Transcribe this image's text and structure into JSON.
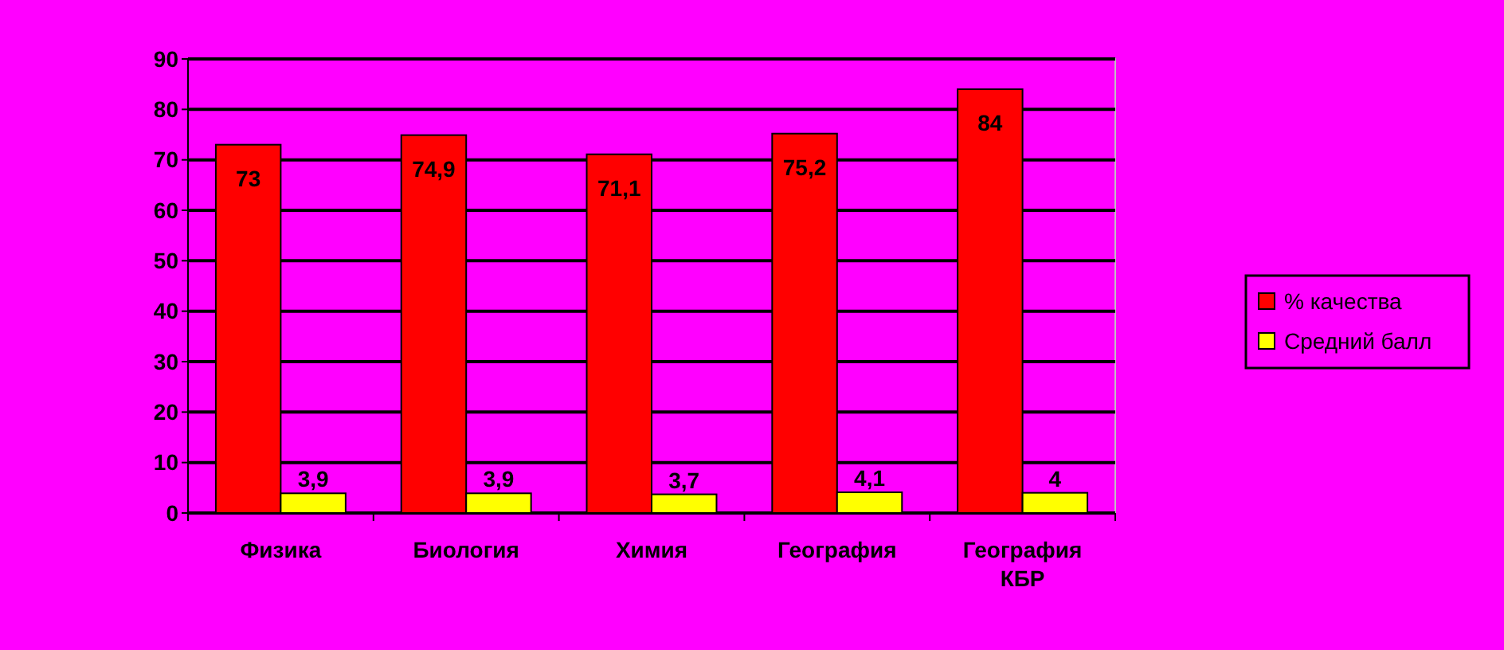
{
  "chart_data": {
    "type": "bar",
    "categories": [
      "Физика",
      "Биология",
      "Химия",
      "География",
      "География КБР"
    ],
    "series": [
      {
        "name": "% качества",
        "color": "#ff0000",
        "values": [
          73,
          74.9,
          71.1,
          75.2,
          84
        ],
        "value_labels": [
          "73",
          "74,9",
          "71,1",
          "75,2",
          "84"
        ]
      },
      {
        "name": "Средний балл",
        "color": "#ffff00",
        "values": [
          3.9,
          3.9,
          3.7,
          4.1,
          4
        ],
        "value_labels": [
          "3,9",
          "3,9",
          "3,7",
          "4,1",
          "4"
        ]
      }
    ],
    "ylim": [
      0,
      90
    ],
    "yticks": [
      0,
      10,
      20,
      30,
      40,
      50,
      60,
      70,
      80,
      90
    ],
    "grid": "y",
    "legend": "right"
  }
}
